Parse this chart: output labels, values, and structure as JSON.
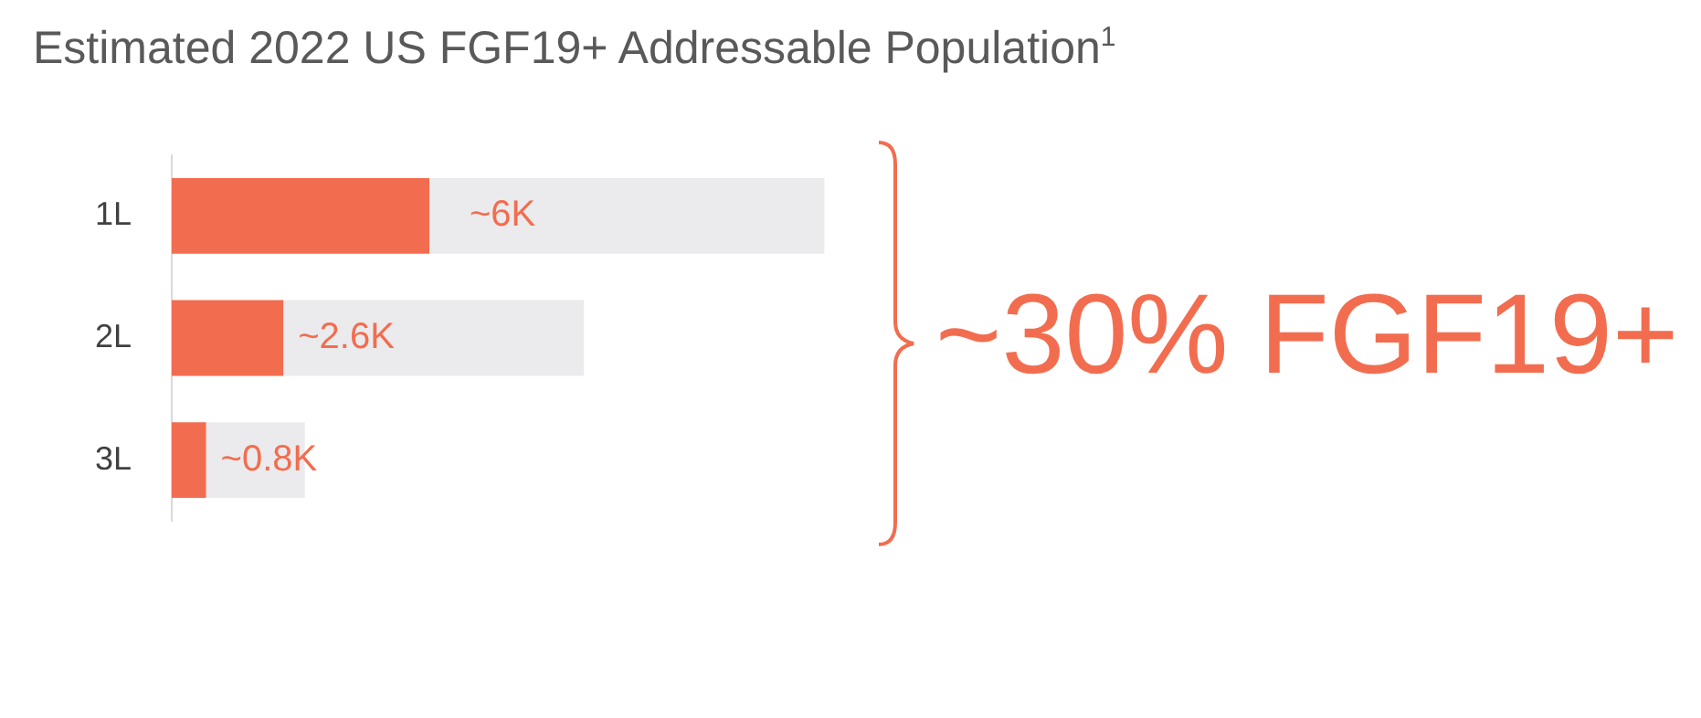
{
  "chart_data": {
    "type": "bar",
    "title": "Estimated 2022 US FGF19+ Addressable Population$^{1}$",
    "orientation": "horizontal",
    "stacked": true,
    "categories": [
      "1L",
      "2L",
      "3L"
    ],
    "series": [
      {
        "color": "#f26d4f",
        "values": [
          6,
          2.6,
          0.8
        ],
        "value_labels": [
          "~6K",
          "~2.6K",
          "~0.8K"
        ]
      },
      {
        "color": "#ebebed",
        "values": [
          9.2,
          7.0,
          2.3
        ]
      }
    ],
    "tick_labels": "y",
    "annotations": [
      "~30% FGF19+"
    ]
  }
}
